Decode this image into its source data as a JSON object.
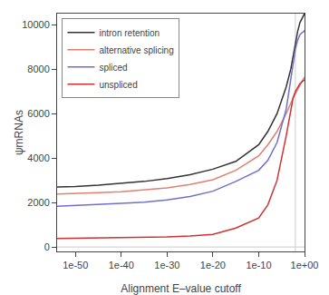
{
  "chart_data": {
    "type": "line",
    "title": "",
    "xlabel": "Alignment E–value cutoff",
    "ylabel": "ψmRNAs",
    "log": "x",
    "x": [
      1e-54,
      1e-50,
      1e-45,
      1e-40,
      1e-35,
      1e-30,
      1e-25,
      1e-20,
      1e-15,
      1e-10,
      1e-08,
      1e-06,
      0.0001,
      0.001,
      0.0031622776601683794,
      0.01,
      0.03162277660168379,
      0.1,
      0.31622776601683794,
      0.7943282347242815,
      1
    ],
    "series": [
      {
        "name": "intron retention",
        "color": "#333333",
        "values": [
          2700,
          2720,
          2780,
          2850,
          2950,
          3080,
          3250,
          3500,
          3850,
          4600,
          5200,
          6000,
          7200,
          8000,
          8600,
          9200,
          9700,
          10100,
          10300,
          10450,
          10500
        ]
      },
      {
        "name": "alternative splicing",
        "color": "#e08070",
        "values": [
          2380,
          2400,
          2440,
          2490,
          2560,
          2660,
          2810,
          3030,
          3450,
          4100,
          4600,
          5200,
          6000,
          6500,
          6700,
          6900,
          7100,
          7300,
          7500,
          7600,
          7650
        ]
      },
      {
        "name": "spliced",
        "color": "#7070cc",
        "values": [
          1830,
          1860,
          1900,
          1960,
          2020,
          2120,
          2270,
          2510,
          2950,
          3450,
          3900,
          4700,
          6200,
          7500,
          8300,
          8900,
          9300,
          9550,
          9650,
          9700,
          9750
        ]
      },
      {
        "name": "unspliced",
        "color": "#cc3333",
        "values": [
          380,
          390,
          400,
          410,
          425,
          450,
          490,
          570,
          850,
          1300,
          1900,
          3000,
          5000,
          6200,
          6700,
          7000,
          7200,
          7350,
          7450,
          7500,
          7520
        ]
      }
    ],
    "xlim": [
      1e-54,
      1
    ],
    "xticks": [
      {
        "value": 1e-50,
        "label": "1e-50"
      },
      {
        "value": 1e-40,
        "label": "1e-40"
      },
      {
        "value": 1e-30,
        "label": "1e-30"
      },
      {
        "value": 1e-20,
        "label": "1e-20"
      },
      {
        "value": 1e-10,
        "label": "1e-10"
      },
      {
        "value": 1,
        "label": "1e+00"
      }
    ],
    "ylim": [
      -200,
      10500
    ],
    "yticks": [
      0,
      2000,
      4000,
      6000,
      8000,
      10000
    ],
    "vline": 0.01,
    "hline": 0,
    "legend": "upper left",
    "grid": false
  }
}
